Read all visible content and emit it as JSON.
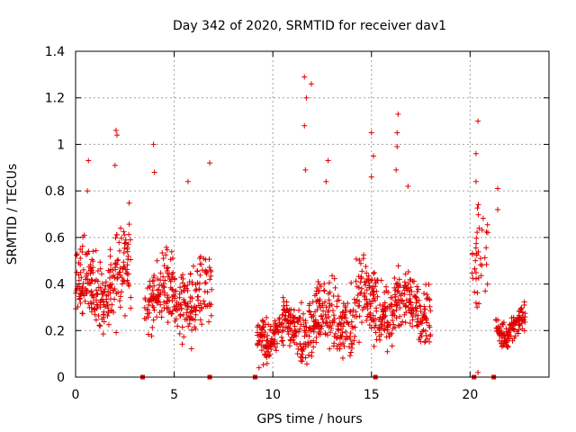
{
  "chart_data": {
    "type": "scatter",
    "title": "Day 342 of 2020, SRMTID for receiver dav1",
    "xlabel": "GPS time / hours",
    "ylabel": "SRMTID / TECUs",
    "xlim": [
      0,
      24
    ],
    "ylim": [
      0,
      1.4
    ],
    "xticks": [
      0,
      5,
      10,
      15,
      20
    ],
    "yticks": [
      0,
      0.2,
      0.4,
      0.6,
      0.8,
      1,
      1.2,
      1.4
    ],
    "xtick_labels": [
      "0",
      "5",
      "10",
      "15",
      "20"
    ],
    "ytick_labels": [
      "0",
      "0.2",
      "0.4",
      "0.6",
      "0.8",
      "1",
      "1.2",
      "1.4"
    ],
    "grid": true,
    "marker": "+",
    "color": "#e00000",
    "gap_markers_x": [
      3.4,
      6.8,
      9.1,
      15.2,
      20.2,
      21.2
    ],
    "series": [
      {
        "name": "dav1",
        "segments": [
          {
            "start": 0.0,
            "end": 2.0,
            "base": 0.38,
            "spread": 0.22,
            "count": 180
          },
          {
            "start": 2.0,
            "end": 2.8,
            "base": 0.45,
            "spread": 0.3,
            "count": 70
          },
          {
            "start": 3.5,
            "end": 6.9,
            "base": 0.35,
            "spread": 0.22,
            "count": 260
          },
          {
            "start": 9.2,
            "end": 11.2,
            "base": 0.2,
            "spread": 0.14,
            "count": 170
          },
          {
            "start": 11.2,
            "end": 14.2,
            "base": 0.25,
            "spread": 0.22,
            "count": 240
          },
          {
            "start": 14.2,
            "end": 15.5,
            "base": 0.3,
            "spread": 0.25,
            "count": 110
          },
          {
            "start": 15.5,
            "end": 18.0,
            "base": 0.3,
            "spread": 0.18,
            "count": 210
          },
          {
            "start": 20.1,
            "end": 20.9,
            "base": 0.5,
            "spread": 0.3,
            "count": 40
          },
          {
            "start": 21.3,
            "end": 22.8,
            "base": 0.22,
            "spread": 0.1,
            "count": 120
          }
        ],
        "spikes": [
          {
            "x": 0.65,
            "y": 0.93
          },
          {
            "x": 0.6,
            "y": 0.8
          },
          {
            "x": 2.05,
            "y": 1.06
          },
          {
            "x": 2.1,
            "y": 1.04
          },
          {
            "x": 2.0,
            "y": 0.91
          },
          {
            "x": 3.95,
            "y": 1.0
          },
          {
            "x": 4.0,
            "y": 0.88
          },
          {
            "x": 5.7,
            "y": 0.84
          },
          {
            "x": 6.8,
            "y": 0.92
          },
          {
            "x": 11.6,
            "y": 1.29
          },
          {
            "x": 11.7,
            "y": 1.2
          },
          {
            "x": 11.95,
            "y": 1.26
          },
          {
            "x": 11.6,
            "y": 1.08
          },
          {
            "x": 11.65,
            "y": 0.89
          },
          {
            "x": 12.8,
            "y": 0.93
          },
          {
            "x": 12.7,
            "y": 0.84
          },
          {
            "x": 15.0,
            "y": 1.05
          },
          {
            "x": 15.1,
            "y": 0.95
          },
          {
            "x": 15.0,
            "y": 0.86
          },
          {
            "x": 16.35,
            "y": 1.13
          },
          {
            "x": 16.3,
            "y": 1.05
          },
          {
            "x": 16.3,
            "y": 0.99
          },
          {
            "x": 16.25,
            "y": 0.89
          },
          {
            "x": 16.85,
            "y": 0.82
          },
          {
            "x": 20.4,
            "y": 1.1
          },
          {
            "x": 20.3,
            "y": 0.96
          },
          {
            "x": 20.3,
            "y": 0.84
          },
          {
            "x": 21.4,
            "y": 0.81
          },
          {
            "x": 21.4,
            "y": 0.72
          },
          {
            "x": 9.3,
            "y": 0.04
          },
          {
            "x": 20.4,
            "y": 0.02
          }
        ]
      }
    ]
  }
}
